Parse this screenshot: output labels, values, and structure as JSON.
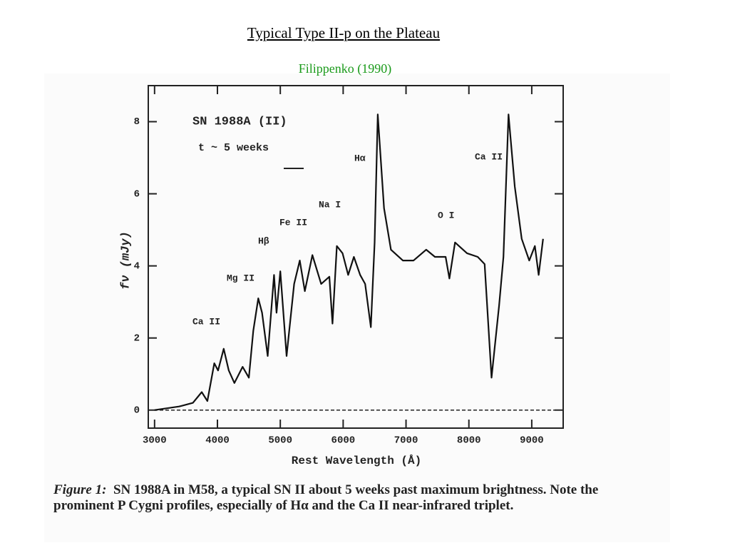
{
  "slide": {
    "title": "Typical Type II-p on the Plateau",
    "source": "Filippenko (1990)"
  },
  "chart_data": {
    "type": "line",
    "x": [
      3000,
      3390,
      3610,
      3750,
      3840,
      3950,
      4010,
      4100,
      4180,
      4270,
      4400,
      4500,
      4570,
      4650,
      4710,
      4800,
      4900,
      4940,
      5000,
      5100,
      5220,
      5310,
      5390,
      5510,
      5650,
      5780,
      5830,
      5900,
      5990,
      6080,
      6170,
      6270,
      6350,
      6440,
      6500,
      6550,
      6650,
      6760,
      6950,
      7120,
      7320,
      7460,
      7630,
      7690,
      7780,
      7970,
      8140,
      8250,
      8360,
      8480,
      8550,
      8630,
      8730,
      8840,
      8960,
      9050,
      9110,
      9180
    ],
    "values": [
      0,
      0.1,
      0.2,
      0.5,
      0.25,
      1.3,
      1.1,
      1.7,
      1.1,
      0.75,
      1.2,
      0.9,
      2.2,
      3.1,
      2.7,
      1.5,
      3.75,
      2.7,
      3.85,
      1.5,
      3.5,
      4.15,
      3.3,
      4.3,
      3.5,
      3.7,
      2.4,
      4.55,
      4.35,
      3.75,
      4.25,
      3.75,
      3.5,
      2.3,
      4.65,
      8.2,
      5.6,
      4.45,
      4.15,
      4.15,
      4.45,
      4.25,
      4.25,
      3.65,
      4.65,
      4.35,
      4.25,
      4.05,
      0.9,
      2.9,
      4.25,
      8.2,
      6.2,
      4.75,
      4.15,
      4.55,
      3.75,
      4.75
    ],
    "color": "#111111",
    "xlabel": "Rest Wavelength (Å)",
    "ylabel": "fν (mJy)",
    "xlim": [
      2900,
      9500
    ],
    "ylim": [
      -0.5,
      9
    ],
    "xticks": [
      3000,
      4000,
      5000,
      6000,
      7000,
      8000,
      9000
    ],
    "yticks": [
      0,
      2,
      4,
      6,
      8
    ],
    "annotations": [
      "SN 1988A (II)",
      "t ~ 5 weeks",
      "Hα",
      "Ca II",
      "Na I",
      "Fe II",
      "Hβ",
      "Mg II",
      "Ca II",
      "O I"
    ]
  },
  "caption": {
    "label": "Figure 1:",
    "text": "SN 1988A in M58, a typical SN II about 5 weeks past maximum brightness. Note the prominent P Cygni profiles, especially of Hα and the Ca II near-infrared triplet."
  }
}
